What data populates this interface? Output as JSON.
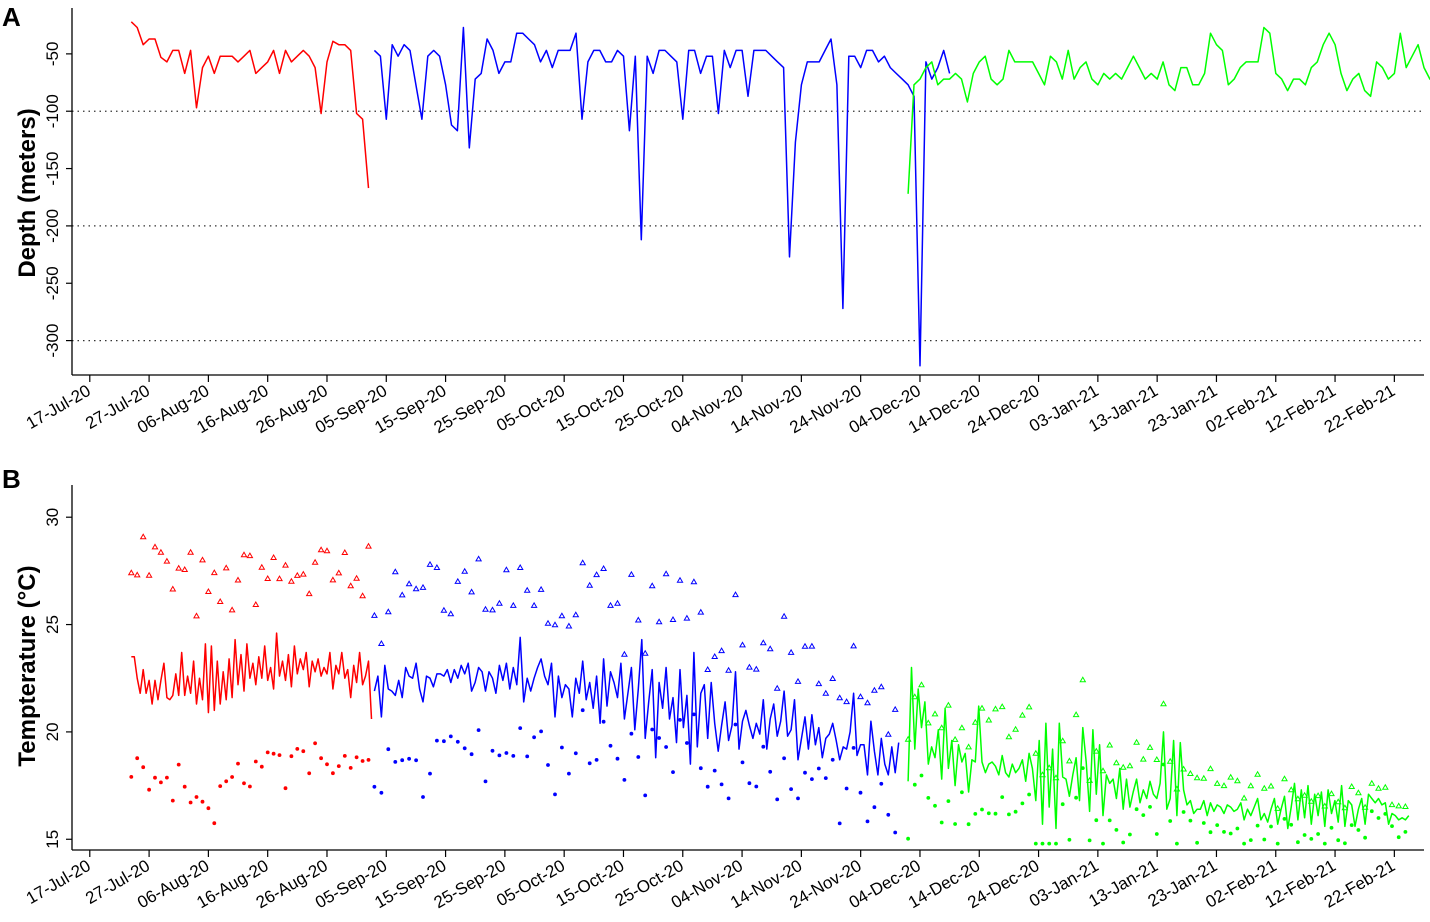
{
  "panels": {
    "a": {
      "letter": "A",
      "ylabel": "Depth (meters)"
    },
    "b": {
      "letter": "B",
      "ylabel": "Tempterature (°C)"
    }
  },
  "chart_data": [
    {
      "type": "line",
      "panel": "A",
      "title": "",
      "xlabel": "",
      "ylabel": "Depth (meters)",
      "x_type": "date",
      "xlim": [
        "2020-07-14",
        "2021-02-27"
      ],
      "x_ticks": [
        "17-Jul-20",
        "27-Jul-20",
        "06-Aug-20",
        "16-Aug-20",
        "26-Aug-20",
        "05-Sep-20",
        "15-Sep-20",
        "25-Sep-20",
        "05-Oct-20",
        "15-Oct-20",
        "25-Oct-20",
        "04-Nov-20",
        "14-Nov-20",
        "24-Nov-20",
        "04-Dec-20",
        "14-Dec-20",
        "24-Dec-20",
        "03-Jan-21",
        "13-Jan-21",
        "23-Jan-21",
        "02-Feb-21",
        "12-Feb-21",
        "22-Feb-21"
      ],
      "ylim": [
        -330,
        -10
      ],
      "y_ticks": [
        -50,
        -100,
        -150,
        -200,
        -250,
        -300
      ],
      "y_tick_labels": [
        "-50",
        "-100",
        "-150",
        "-200",
        "-250",
        "-300"
      ],
      "reference_lines": [
        -100,
        -200,
        -300
      ],
      "grid": false,
      "legend": "none",
      "series": [
        {
          "color": "#ff0000",
          "start_date": "2020-07-24",
          "values": [
            -22,
            -27,
            -42,
            -37,
            -37,
            -53,
            -57,
            -47,
            -47,
            -67,
            -47,
            -97,
            -62,
            -52,
            -67,
            -52,
            -52,
            -52,
            -57,
            -52,
            -47,
            -67,
            -62,
            -57,
            -47,
            -67,
            -47,
            -57,
            -52,
            -47,
            -52,
            -62,
            -102,
            -57,
            -39,
            -42,
            -42,
            -47,
            -102,
            -107,
            -167
          ]
        },
        {
          "color": "#0000ff",
          "start_date": "2020-09-03",
          "values": [
            -47,
            -52,
            -107,
            -42,
            -52,
            -42,
            -47,
            -77,
            -107,
            -52,
            -47,
            -52,
            -77,
            -112,
            -117,
            -27,
            -132,
            -72,
            -67,
            -37,
            -47,
            -67,
            -57,
            -57,
            -32,
            -32,
            -37,
            -42,
            -57,
            -47,
            -62,
            -47,
            -47,
            -47,
            -32,
            -107,
            -57,
            -47,
            -47,
            -57,
            -57,
            -47,
            -52,
            -117,
            -52,
            -212,
            -52,
            -67,
            -47,
            -47,
            -52,
            -57,
            -107,
            -47,
            -47,
            -67,
            -52,
            -52,
            -102,
            -47,
            -62,
            -47,
            -47,
            -87,
            -47,
            -47,
            -47,
            -52,
            -57,
            -62,
            -227,
            -127,
            -77,
            -57,
            -57,
            -57,
            -47,
            -37,
            -77,
            -272,
            -52,
            -52,
            -62,
            -47,
            -47,
            -57,
            -52,
            -62,
            -67,
            -72,
            -77,
            -87,
            -322,
            -57,
            -72,
            -62,
            -47,
            -67
          ]
        },
        {
          "color": "#00ff00",
          "start_date": "2020-12-02",
          "values": [
            -172,
            -77,
            -72,
            -62,
            -57,
            -77,
            -72,
            -72,
            -67,
            -72,
            -92,
            -67,
            -57,
            -52,
            -72,
            -77,
            -72,
            -47,
            -57,
            -57,
            -57,
            -57,
            -67,
            -77,
            -52,
            -57,
            -72,
            -47,
            -72,
            -62,
            -57,
            -72,
            -77,
            -67,
            -72,
            -67,
            -72,
            -62,
            -52,
            -62,
            -72,
            -67,
            -72,
            -57,
            -77,
            -82,
            -62,
            -62,
            -77,
            -77,
            -67,
            -32,
            -42,
            -47,
            -77,
            -72,
            -62,
            -57,
            -57,
            -57,
            -27,
            -32,
            -67,
            -72,
            -82,
            -72,
            -72,
            -77,
            -62,
            -57,
            -42,
            -32,
            -42,
            -67,
            -82,
            -72,
            -67,
            -82,
            -87,
            -57,
            -62,
            -72,
            -67,
            -32,
            -62,
            -52,
            -42,
            -62,
            -72,
            -67,
            -47,
            -52,
            -12,
            -32,
            -52,
            -82,
            -52,
            -32,
            -37,
            -47,
            -47,
            -32
          ]
        }
      ]
    },
    {
      "type": "scatter",
      "panel": "B",
      "title": "",
      "xlabel": "",
      "ylabel": "Tempterature (°C)",
      "x_type": "date",
      "xlim": [
        "2020-07-14",
        "2021-02-27"
      ],
      "x_ticks": [
        "17-Jul-20",
        "27-Jul-20",
        "06-Aug-20",
        "16-Aug-20",
        "26-Aug-20",
        "05-Sep-20",
        "15-Sep-20",
        "25-Sep-20",
        "05-Oct-20",
        "15-Oct-20",
        "25-Oct-20",
        "04-Nov-20",
        "14-Nov-20",
        "24-Nov-20",
        "04-Dec-20",
        "14-Dec-20",
        "24-Dec-20",
        "03-Jan-21",
        "13-Jan-21",
        "23-Jan-21",
        "02-Feb-21",
        "12-Feb-21",
        "22-Feb-21"
      ],
      "ylim": [
        14.5,
        31.5
      ],
      "y_ticks": [
        15,
        20,
        25,
        30
      ],
      "y_tick_labels": [
        "15",
        "20",
        "25",
        "30"
      ],
      "grid": false,
      "legend": "none",
      "series": [
        {
          "color": "#ff0000",
          "start_date": "2020-07-24",
          "mean_line": [
            23.5,
            23.5,
            22.5,
            21.8,
            22.9,
            21.8,
            22.4,
            21.3,
            22.4,
            21.5,
            22.4,
            23.2,
            21.6,
            21.5,
            21.7,
            22.7,
            21.7,
            23.7,
            21.7,
            22.6,
            21.8,
            23.3,
            21.3,
            22.5,
            21.5,
            24.1,
            20.9,
            24.0,
            21.0,
            23.3,
            21.3,
            22.8,
            21.5,
            23.4,
            21.6,
            24.3,
            22.2,
            23.6,
            21.9,
            24.1,
            22.5,
            23.2,
            22.2,
            23.5,
            22.5,
            24.0,
            22.4,
            23.0,
            22.0,
            24.6,
            22.6,
            23.3,
            22.4,
            23.6,
            22.1,
            24.0,
            22.7,
            23.4,
            22.9,
            23.7,
            22.1,
            23.3,
            22.8,
            23.4,
            22.6,
            23.0,
            22.7,
            23.7,
            22.0,
            23.1,
            22.7,
            23.7,
            22.5,
            22.9,
            21.6,
            23.1,
            22.3,
            23.7,
            22.2,
            22.6,
            23.3,
            20.6
          ]
        },
        {
          "color": "#0000ff",
          "start_date": "2020-09-03",
          "mean_line": [
            21.9,
            22.6,
            20.7,
            23.1,
            22.0,
            21.9,
            21.7,
            22.4,
            21.6,
            23.0,
            22.6,
            22.5,
            23.2,
            22.0,
            21.4,
            22.6,
            22.5,
            22.1,
            22.7,
            22.7,
            22.6,
            22.9,
            22.3,
            22.9,
            22.5,
            23.1,
            22.7,
            23.2,
            21.9,
            22.3,
            23.0,
            22.8,
            21.9,
            22.8,
            22.5,
            21.8,
            23.1,
            22.4,
            23.2,
            22.0,
            23.0,
            22.2,
            24.4,
            21.4,
            22.5,
            21.9,
            22.5,
            23.0,
            23.4,
            22.6,
            22.2,
            23.2,
            20.7,
            22.6,
            21.6,
            22.2,
            22.0,
            20.7,
            22.5,
            21.8,
            23.3,
            21.5,
            22.3,
            21.1,
            22.6,
            20.4,
            23.4,
            21.2,
            22.8,
            22.3,
            21.6,
            23.2,
            20.6,
            21.8,
            23.0,
            20.1,
            22.0,
            24.3,
            19.7,
            21.4,
            22.9,
            18.8,
            22.3,
            21.1,
            23.0,
            20.6,
            21.6,
            19.5,
            22.9,
            20.2,
            21.7,
            18.5,
            23.7,
            19.3,
            21.8,
            22.2,
            19.7,
            22.3,
            20.4,
            19.1,
            20.3,
            21.4,
            19.6,
            20.3,
            22.8,
            19.2,
            20.5,
            21.0,
            20.3,
            19.7,
            20.4,
            19.9,
            21.5,
            19.2,
            20.6,
            21.3,
            19.8,
            20.5,
            21.9,
            19.8,
            20.1,
            21.5,
            18.7,
            19.7,
            20.7,
            19.2,
            20.8,
            19.4,
            20.2,
            18.8,
            19.7,
            19.9,
            20.4,
            19.6,
            18.7,
            19.3,
            19.2,
            20.0,
            21.8,
            18.9,
            19.4,
            19.4,
            18.0,
            20.5,
            19.1,
            18.0,
            19.7,
            18.5,
            18.0,
            19.3,
            18.1,
            19.5
          ]
        },
        {
          "color": "#00ff00",
          "start_date": "2020-12-02",
          "mean_line": [
            17.7,
            23.0,
            19.2,
            22.0,
            20.2,
            21.4,
            18.5,
            19.3,
            18.8,
            20.1,
            17.8,
            21.1,
            18.3,
            19.6,
            17.5,
            19.4,
            18.6,
            19.0,
            17.2,
            18.7,
            18.6,
            21.2,
            18.6,
            18.1,
            18.5,
            18.6,
            18.4,
            18.0,
            18.9,
            18.1,
            17.9,
            18.5,
            18.1,
            18.3,
            18.7,
            17.7,
            19.0,
            18.3,
            16.8,
            19.6,
            15.7,
            20.4,
            16.5,
            19.2,
            15.5,
            20.4,
            17.9,
            17.8,
            17.0,
            18.0,
            18.8,
            16.8,
            20.2,
            18.6,
            16.3,
            20.1,
            17.1,
            19.4,
            16.1,
            18.0,
            17.6,
            17.8,
            16.9,
            18.3,
            16.4,
            17.8,
            16.5,
            17.2,
            17.8,
            16.7,
            17.3,
            16.9,
            17.7,
            17.1,
            16.9,
            17.6,
            20.0,
            16.4,
            16.9,
            19.6,
            16.1,
            19.5,
            17.3,
            16.6,
            16.8,
            16.2,
            16.4,
            16.4,
            16.8,
            16.1,
            16.7,
            16.3,
            16.6,
            16.5,
            16.2,
            16.6,
            16.5,
            16.3,
            16.4,
            16.7,
            15.9,
            16.4,
            16.1,
            16.5,
            16.9,
            15.9,
            16.2,
            15.8,
            16.4,
            16.9,
            15.7,
            16.4,
            17.0,
            15.5,
            16.5,
            17.6,
            15.9,
            17.3,
            16.0,
            17.5,
            15.7,
            17.1,
            16.1,
            17.2,
            15.6,
            17.3,
            16.2,
            16.8,
            15.8,
            17.5,
            15.6,
            16.8,
            16.6,
            15.6,
            16.4,
            16.9,
            15.7,
            17.1,
            16.9,
            16.7,
            16.9,
            16.6,
            16.7,
            15.7,
            16.2,
            16.1,
            15.9,
            16.0,
            15.9,
            16.1
          ]
        }
      ]
    }
  ]
}
